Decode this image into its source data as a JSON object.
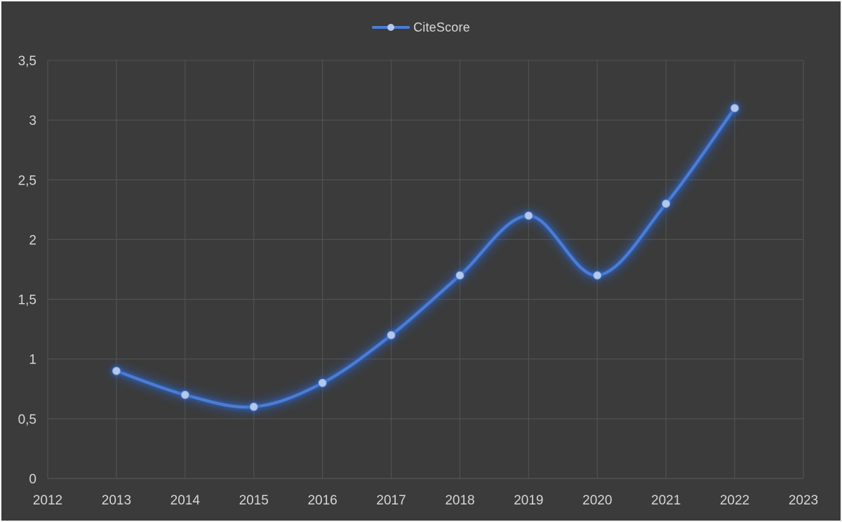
{
  "chart_data": {
    "type": "line",
    "title": "",
    "legend": {
      "label": "CiteScore",
      "position": "top"
    },
    "x": [
      2013,
      2014,
      2015,
      2016,
      2017,
      2018,
      2019,
      2020,
      2021,
      2022
    ],
    "series": [
      {
        "name": "CiteScore",
        "values": [
          0.9,
          0.7,
          0.6,
          0.8,
          1.2,
          1.7,
          2.2,
          1.7,
          2.3,
          3.1
        ]
      }
    ],
    "x_axis": {
      "tick_labels": [
        "2012",
        "2013",
        "2014",
        "2015",
        "2016",
        "2017",
        "2018",
        "2019",
        "2020",
        "2021",
        "2022",
        "2023"
      ],
      "tick_values": [
        2012,
        2013,
        2014,
        2015,
        2016,
        2017,
        2018,
        2019,
        2020,
        2021,
        2022,
        2023
      ],
      "range": [
        2012,
        2023
      ]
    },
    "y_axis": {
      "tick_labels": [
        "0",
        "0,5",
        "1",
        "1,5",
        "2",
        "2,5",
        "3",
        "3,5"
      ],
      "tick_values": [
        0,
        0.5,
        1,
        1.5,
        2,
        2.5,
        3,
        3.5
      ],
      "range": [
        0,
        3.5
      ]
    },
    "grid": true,
    "line_smoothing": true,
    "colors": {
      "background": "#3b3b3b",
      "frame_border": "#f4f4f4",
      "gridline": "#535353",
      "axis_text": "#d6d6d6",
      "line": "#4b7dd6",
      "line_glow": "#2f62bf",
      "marker_fill": "#b3c8ec",
      "marker_stroke": "#86a8de",
      "legend_text": "#d9d9d9"
    }
  }
}
